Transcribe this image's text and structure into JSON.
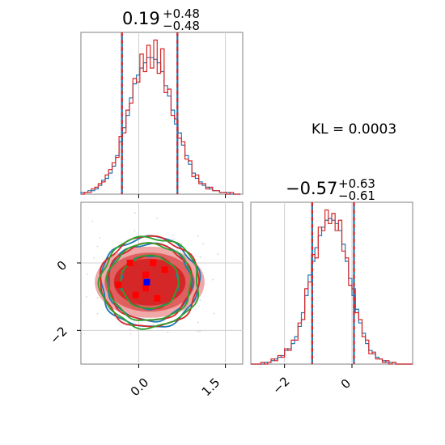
{
  "chart_data": [
    {
      "type": "histogram",
      "panel": "top-left",
      "title": {
        "value": "0.19",
        "plus": "+0.48",
        "minus": "−0.48"
      },
      "xlim": [
        -1.0,
        1.8
      ],
      "quantile_lines": [
        -0.29,
        0.67
      ],
      "series": [
        {
          "color": "#1f77b4",
          "bins_x": [
            -1.0,
            -0.94,
            -0.88,
            -0.82,
            -0.76,
            -0.7,
            -0.64,
            -0.58,
            -0.52,
            -0.46,
            -0.4,
            -0.34,
            -0.28,
            -0.22,
            -0.16,
            -0.1,
            -0.04,
            0.02,
            0.08,
            0.14,
            0.2,
            0.26,
            0.32,
            0.38,
            0.44,
            0.5,
            0.56,
            0.62,
            0.68,
            0.74,
            0.8,
            0.86,
            0.92,
            0.98,
            1.04,
            1.1,
            1.16,
            1.22,
            1.28,
            1.34,
            1.4,
            1.46,
            1.52,
            1.58,
            1.64,
            1.7,
            1.76
          ],
          "counts": [
            1,
            1,
            2,
            2,
            3,
            5,
            8,
            9,
            12,
            16,
            22,
            30,
            38,
            45,
            55,
            63,
            68,
            72,
            75,
            78,
            78,
            77,
            75,
            70,
            62,
            56,
            48,
            40,
            35,
            28,
            22,
            17,
            12,
            9,
            7,
            5,
            4,
            3,
            2,
            2,
            1,
            1,
            1,
            0,
            0,
            0
          ]
        },
        {
          "color": "#d62728",
          "bins_x": [
            -1.0,
            -0.94,
            -0.88,
            -0.82,
            -0.76,
            -0.7,
            -0.64,
            -0.58,
            -0.52,
            -0.46,
            -0.4,
            -0.34,
            -0.28,
            -0.22,
            -0.16,
            -0.1,
            -0.04,
            0.02,
            0.08,
            0.14,
            0.2,
            0.26,
            0.32,
            0.38,
            0.44,
            0.5,
            0.56,
            0.62,
            0.68,
            0.74,
            0.8,
            0.86,
            0.92,
            0.98,
            1.04,
            1.1,
            1.16,
            1.22,
            1.28,
            1.34,
            1.4,
            1.46,
            1.52,
            1.58,
            1.64,
            1.7,
            1.76
          ],
          "counts": [
            0,
            1,
            1,
            3,
            4,
            6,
            7,
            11,
            14,
            18,
            21,
            33,
            35,
            48,
            52,
            66,
            64,
            80,
            70,
            85,
            72,
            88,
            69,
            83,
            58,
            60,
            45,
            43,
            32,
            30,
            20,
            19,
            10,
            11,
            6,
            6,
            3,
            4,
            2,
            2,
            1,
            1,
            0,
            1,
            0,
            0
          ]
        }
      ]
    },
    {
      "type": "scatter",
      "panel": "bottom-left",
      "xlim": [
        -1.0,
        1.8
      ],
      "ylim": [
        -3.0,
        1.8
      ],
      "xticks": [
        0.0,
        1.5
      ],
      "xtick_labels": [
        "0.0",
        "1.5"
      ],
      "yticks": [
        0,
        -2
      ],
      "ytick_labels": [
        "0",
        "−2"
      ],
      "center": [
        0.19,
        -0.57
      ],
      "contour_colors": [
        "#1f77b4",
        "#d62728",
        "#2ca02c"
      ],
      "fill_colors": [
        "#f0a8a8",
        "#e06060",
        "#d62728"
      ],
      "contour_levels_sigma": [
        1.0,
        1.45,
        1.7
      ],
      "marker_points": [
        {
          "x": -0.15,
          "y": 0.0,
          "color": "#ff0000"
        },
        {
          "x": 0.25,
          "y": 0.0,
          "color": "#ff0000"
        },
        {
          "x": 0.45,
          "y": -0.2,
          "color": "#ff0000"
        },
        {
          "x": -0.35,
          "y": -0.65,
          "color": "#ff0000"
        },
        {
          "x": 0.12,
          "y": -0.35,
          "color": "#ff0000"
        },
        {
          "x": 0.12,
          "y": -0.75,
          "color": "#ff0000"
        },
        {
          "x": -0.05,
          "y": -0.95,
          "color": "#ff0000"
        },
        {
          "x": 0.32,
          "y": -1.05,
          "color": "#ff0000"
        },
        {
          "x": 0.14,
          "y": -0.57,
          "color": "#0000ff"
        }
      ]
    },
    {
      "type": "histogram",
      "panel": "bottom-right",
      "title": {
        "value": "−0.57",
        "plus": "+0.63",
        "minus": "−0.61"
      },
      "xlim": [
        -3.0,
        1.8
      ],
      "xticks": [
        -2,
        0
      ],
      "xtick_labels": [
        "−2",
        "0"
      ],
      "quantile_lines": [
        -1.18,
        0.06
      ],
      "series": [
        {
          "color": "#1f77b4",
          "bins_x": [
            -3.0,
            -2.9,
            -2.8,
            -2.7,
            -2.6,
            -2.5,
            -2.4,
            -2.3,
            -2.2,
            -2.1,
            -2.0,
            -1.9,
            -1.8,
            -1.7,
            -1.6,
            -1.5,
            -1.4,
            -1.3,
            -1.2,
            -1.1,
            -1.0,
            -0.9,
            -0.8,
            -0.7,
            -0.6,
            -0.5,
            -0.4,
            -0.3,
            -0.2,
            -0.1,
            0.0,
            0.1,
            0.2,
            0.3,
            0.4,
            0.5,
            0.6,
            0.7,
            0.8,
            0.9,
            1.0,
            1.1,
            1.2,
            1.3,
            1.4,
            1.5,
            1.6,
            1.7
          ],
          "counts": [
            0,
            0,
            0,
            0,
            1,
            1,
            2,
            3,
            4,
            5,
            8,
            9,
            12,
            16,
            22,
            30,
            40,
            52,
            60,
            68,
            75,
            80,
            84,
            85,
            84,
            82,
            78,
            70,
            60,
            50,
            40,
            32,
            24,
            18,
            12,
            8,
            6,
            4,
            3,
            2,
            1,
            1,
            1,
            0,
            0,
            0,
            0,
            0
          ]
        },
        {
          "color": "#d62728",
          "bins_x": [
            -3.0,
            -2.9,
            -2.8,
            -2.7,
            -2.6,
            -2.5,
            -2.4,
            -2.3,
            -2.2,
            -2.1,
            -2.0,
            -1.9,
            -1.8,
            -1.7,
            -1.6,
            -1.5,
            -1.4,
            -1.3,
            -1.2,
            -1.1,
            -1.0,
            -0.9,
            -0.8,
            -0.7,
            -0.6,
            -0.5,
            -0.4,
            -0.3,
            -0.2,
            -0.1,
            0.0,
            0.1,
            0.2,
            0.3,
            0.4,
            0.5,
            0.6,
            0.7,
            0.8,
            0.9,
            1.0,
            1.1,
            1.2,
            1.3,
            1.4,
            1.5,
            1.6,
            1.7
          ],
          "counts": [
            0,
            0,
            0,
            1,
            0,
            1,
            3,
            2,
            5,
            4,
            9,
            8,
            14,
            14,
            24,
            26,
            44,
            48,
            64,
            62,
            80,
            78,
            90,
            82,
            88,
            78,
            84,
            66,
            62,
            46,
            44,
            30,
            26,
            16,
            14,
            6,
            7,
            3,
            3,
            1,
            2,
            0,
            1,
            0,
            0,
            0,
            0,
            0
          ]
        }
      ]
    }
  ],
  "annotation": {
    "kl_label": "KL = 0.0003"
  },
  "tick_label_rotation_deg": 45
}
